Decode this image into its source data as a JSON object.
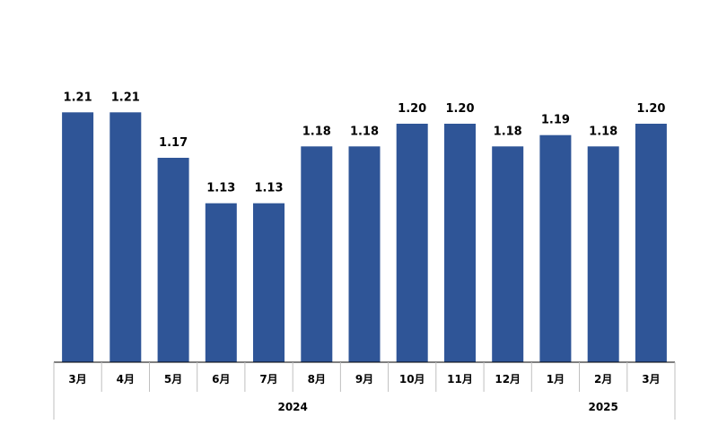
{
  "chart_data": {
    "type": "bar",
    "categories": [
      "3月",
      "4月",
      "5月",
      "6月",
      "7月",
      "8月",
      "9月",
      "10月",
      "11月",
      "12月",
      "1月",
      "2月",
      "3月"
    ],
    "values": [
      1.21,
      1.21,
      1.17,
      1.13,
      1.13,
      1.18,
      1.18,
      1.2,
      1.2,
      1.18,
      1.19,
      1.18,
      1.2
    ],
    "value_labels": [
      "1.21",
      "1.21",
      "1.17",
      "1.13",
      "1.13",
      "1.18",
      "1.18",
      "1.20",
      "1.20",
      "1.18",
      "1.19",
      "1.18",
      "1.20"
    ],
    "groups": [
      {
        "label": "2024",
        "start": 0,
        "end": 9
      },
      {
        "label": "2025",
        "start": 10,
        "end": 12
      }
    ],
    "title": "",
    "xlabel": "",
    "ylabel": "",
    "ylim": [
      0.99,
      1.245
    ],
    "grid": false,
    "legend": "none",
    "bar_color": "#2F5597"
  }
}
